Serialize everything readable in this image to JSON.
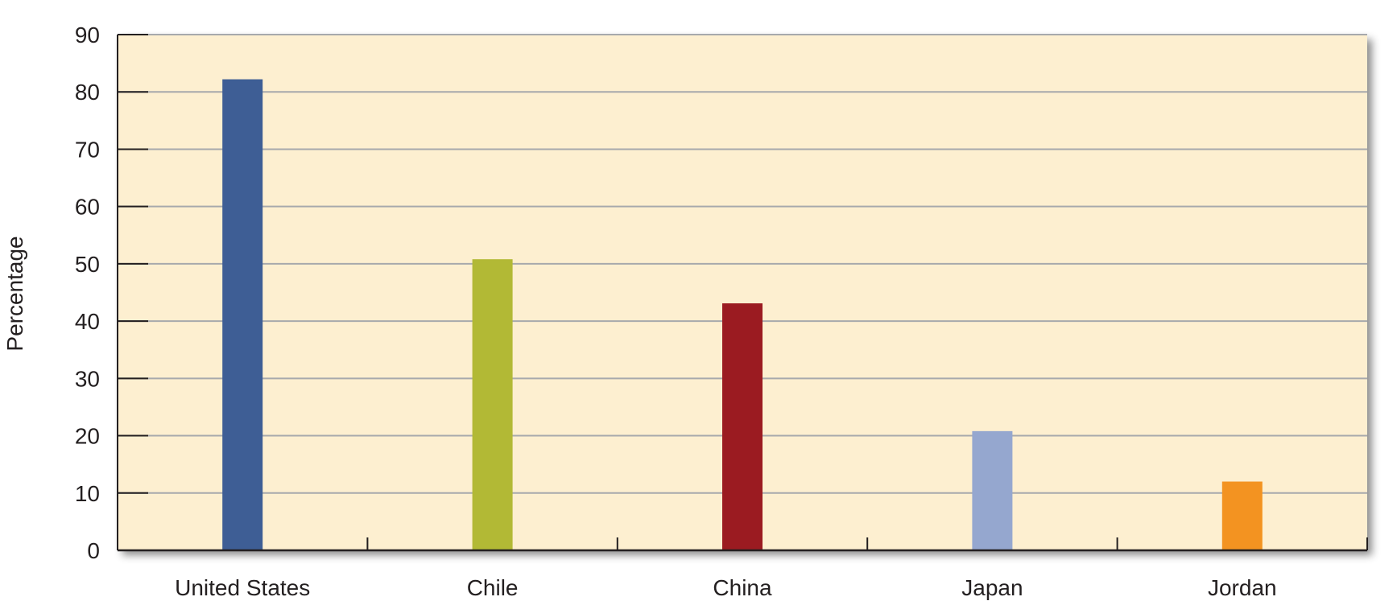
{
  "chart_data": {
    "type": "bar",
    "title": "",
    "xlabel": "",
    "ylabel": "Percentage",
    "ylim": [
      0,
      90
    ],
    "yticks": [
      0,
      10,
      20,
      30,
      40,
      50,
      60,
      70,
      80,
      90
    ],
    "categories": [
      "United States",
      "Chile",
      "China",
      "Japan",
      "Jordan"
    ],
    "values": [
      82.2,
      50.8,
      43.1,
      20.8,
      12.0
    ],
    "bar_colors": [
      "#3e5e95",
      "#b2b935",
      "#9b1b21",
      "#95a7cf",
      "#f39321"
    ],
    "grid": "horizontal",
    "legend": "none",
    "plot_background": "#fdefd0"
  }
}
